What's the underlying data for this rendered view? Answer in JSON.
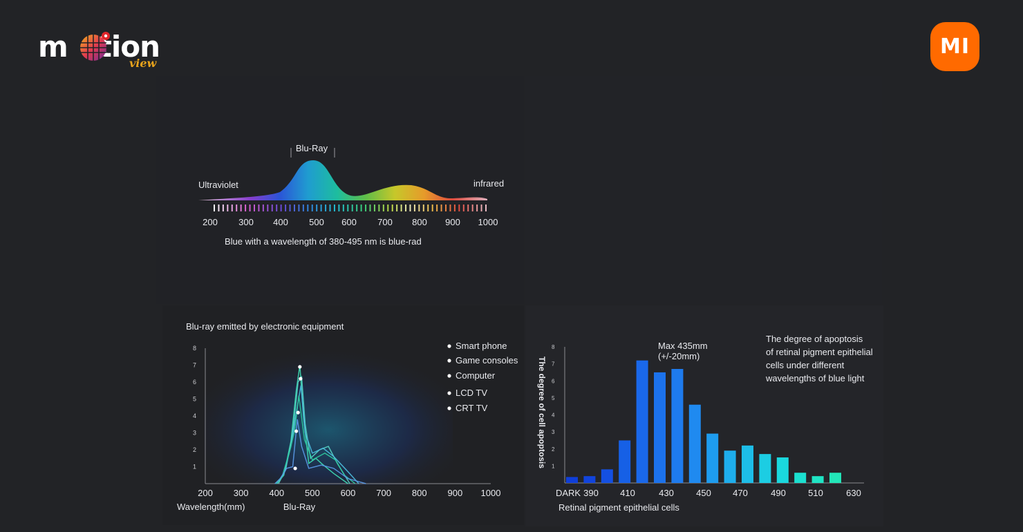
{
  "brand": {
    "logo_text": "motion",
    "logo_subtext": "view",
    "badge_text": "MI"
  },
  "spectrum": {
    "peak_label": "Blu-Ray",
    "left_label": "Ultraviolet",
    "right_label": "infrared",
    "ticks": [
      "200",
      "300",
      "400",
      "500",
      "600",
      "700",
      "800",
      "900",
      "1000"
    ],
    "caption": "Blue  with a wavelength of 380-495 nm is blue-rad"
  },
  "chart_data": [
    {
      "type": "line",
      "title": "Blu-ray emitted by electronic equipment",
      "xlabel": "Wavelength(mm)",
      "x_annotation": "Blu-Ray",
      "x_ticks": [
        "200",
        "300",
        "400",
        "500",
        "600",
        "700",
        "800",
        "900",
        "1000"
      ],
      "y_ticks": [
        "1",
        "2",
        "3",
        "4",
        "5",
        "6",
        "7",
        "8"
      ],
      "xlim": [
        200,
        1000
      ],
      "ylim": [
        0,
        8
      ],
      "legend": [
        "Smart phone",
        "Game consoles",
        "Computer",
        "LCD TV",
        "CRT TV"
      ],
      "legend_position": "top-right",
      "series": [
        {
          "name": "Smart phone",
          "x": [
            400,
            420,
            440,
            455,
            465,
            475,
            490,
            510,
            525,
            560,
            600
          ],
          "y": [
            0,
            0.5,
            2.5,
            5.5,
            7,
            4,
            1.2,
            1.5,
            1.2,
            0.6,
            0
          ]
        },
        {
          "name": "Game consoles",
          "x": [
            405,
            425,
            445,
            460,
            470,
            480,
            495,
            520,
            545,
            570,
            605
          ],
          "y": [
            0,
            0.8,
            3,
            6,
            6.3,
            3.5,
            1.5,
            2.0,
            2.2,
            1.2,
            0
          ]
        },
        {
          "name": "Computer",
          "x": [
            400,
            420,
            440,
            455,
            468,
            480,
            500,
            530,
            560,
            600,
            630
          ],
          "y": [
            0,
            0.6,
            2.2,
            4.2,
            5.8,
            3,
            1.8,
            2.1,
            1.6,
            0.7,
            0
          ]
        },
        {
          "name": "LCD TV",
          "x": [
            398,
            415,
            435,
            450,
            462,
            478,
            500,
            535,
            565,
            590,
            620
          ],
          "y": [
            0,
            0.4,
            1.8,
            3.1,
            5.2,
            2.6,
            1.4,
            1.8,
            1.4,
            0.5,
            0
          ]
        },
        {
          "name": "CRT TV",
          "x": [
            395,
            410,
            428,
            445,
            458,
            470,
            490,
            525,
            560,
            600,
            650
          ],
          "y": [
            0,
            0.3,
            0.9,
            1.0,
            3.8,
            2.2,
            0.9,
            1.1,
            0.9,
            0.3,
            0
          ]
        }
      ],
      "markers": [
        {
          "x": 465,
          "y": 6.9
        },
        {
          "x": 467,
          "y": 6.2
        },
        {
          "x": 460,
          "y": 4.2
        },
        {
          "x": 455,
          "y": 3.1
        },
        {
          "x": 452,
          "y": 0.9
        }
      ]
    },
    {
      "type": "bar",
      "title": "The degree of apoptosis of retinal pigment epithelial cells under different wavelengths of blue light",
      "ylabel": "The degree of cell apoptosis",
      "xlabel": "Retinal pigment epithelial cells",
      "annotation": "Max 435mm (+/-20mm)",
      "y_ticks": [
        "1",
        "2",
        "3",
        "4",
        "5",
        "6",
        "7",
        "8"
      ],
      "ylim": [
        0,
        8
      ],
      "x_tick_labels": [
        "DARK",
        "390",
        "410",
        "430",
        "450",
        "470",
        "490",
        "510",
        "630"
      ],
      "values": [
        0.35,
        0.4,
        0.8,
        2.5,
        7.2,
        6.5,
        6.7,
        4.6,
        2.9,
        1.9,
        2.2,
        1.7,
        1.5,
        0.6,
        0.4,
        0.6
      ],
      "colors": [
        "#0f3ed9",
        "#1144dd",
        "#1450e2",
        "#1660e6",
        "#1a68ea",
        "#1c72ec",
        "#1e7bee",
        "#1f8af0",
        "#1e9cef",
        "#1eaeed",
        "#1dbde8",
        "#1ccde3",
        "#1ad8de",
        "#1be0d0",
        "#1fe4c4",
        "#22e6b8"
      ]
    }
  ]
}
